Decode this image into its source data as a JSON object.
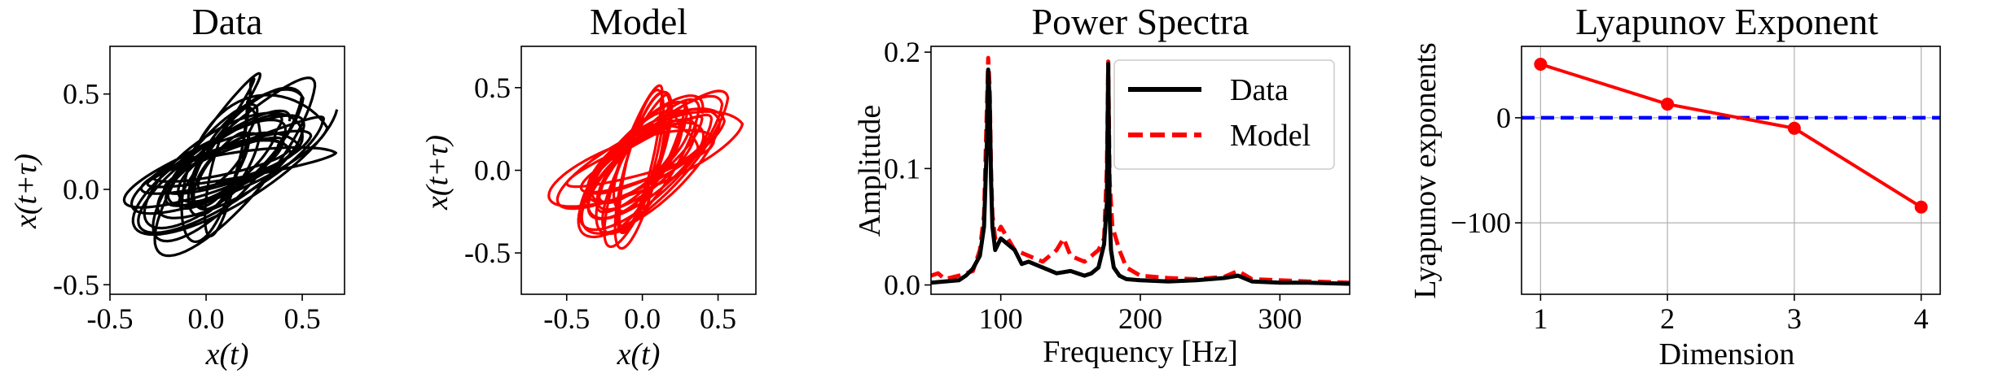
{
  "colors": {
    "data": "#000000",
    "model": "#ff0000",
    "zero_line": "#0000ff",
    "grid": "#b0b0b0"
  },
  "chart_data": [
    {
      "type": "line",
      "subtype": "phase-portrait",
      "title": "Data",
      "xlabel": "x(t)",
      "ylabel": "x(t+τ)",
      "xlim": [
        -0.5,
        0.72
      ],
      "ylim": [
        -0.55,
        0.75
      ],
      "xticks": [
        -0.5,
        0.0,
        0.5
      ],
      "yticks": [
        -0.5,
        0.0,
        0.5
      ],
      "xtick_labels": [
        "-0.5",
        "0.0",
        "0.5"
      ],
      "ytick_labels": [
        "-0.5",
        "0.0",
        "0.5"
      ],
      "series": [
        {
          "color": "#000000",
          "center": [
            0.1,
            0.12
          ],
          "amplitude_x": [
            0.08,
            0.58
          ],
          "amplitude_y": [
            0.06,
            0.55
          ],
          "turns": 22
        }
      ]
    },
    {
      "type": "line",
      "subtype": "phase-portrait",
      "title": "Model",
      "xlabel": "x(t)",
      "ylabel": "x(t+τ)",
      "xlim": [
        -0.8,
        0.75
      ],
      "ylim": [
        -0.75,
        0.75
      ],
      "xticks": [
        -0.5,
        0.0,
        0.5
      ],
      "yticks": [
        -0.5,
        0.0,
        0.5
      ],
      "xtick_labels": [
        "-0.5",
        "0.0",
        "0.5"
      ],
      "ytick_labels": [
        "-0.5",
        "0.0",
        "0.5"
      ],
      "series": [
        {
          "color": "#ff0000",
          "center": [
            0.0,
            0.05
          ],
          "amplitude_x": [
            0.12,
            0.66
          ],
          "amplitude_y": [
            0.1,
            0.64
          ],
          "turns": 22
        }
      ]
    },
    {
      "type": "line",
      "title": "Power Spectra",
      "xlabel": "Frequency [Hz]",
      "ylabel": "Amplitude",
      "xlim": [
        50,
        350
      ],
      "ylim": [
        -0.008,
        0.205
      ],
      "xticks": [
        100,
        200,
        300
      ],
      "yticks": [
        0.0,
        0.1,
        0.2
      ],
      "xtick_labels": [
        "100",
        "200",
        "300"
      ],
      "ytick_labels": [
        "0.0",
        "0.1",
        "0.2"
      ],
      "legend": {
        "position": "top-right",
        "entries": [
          "Data",
          "Model"
        ]
      },
      "series": [
        {
          "name": "Data",
          "color": "#000000",
          "style": "solid",
          "x": [
            50,
            60,
            70,
            75,
            80,
            85,
            88,
            90,
            91,
            92,
            93,
            94,
            96,
            100,
            105,
            110,
            115,
            120,
            130,
            140,
            150,
            160,
            165,
            170,
            174,
            176,
            177,
            178,
            179,
            181,
            185,
            190,
            200,
            220,
            240,
            260,
            270,
            280,
            300,
            320,
            350
          ],
          "y": [
            0.002,
            0.003,
            0.004,
            0.008,
            0.014,
            0.025,
            0.05,
            0.12,
            0.185,
            0.16,
            0.09,
            0.05,
            0.03,
            0.04,
            0.035,
            0.03,
            0.018,
            0.02,
            0.015,
            0.01,
            0.012,
            0.008,
            0.01,
            0.015,
            0.035,
            0.07,
            0.19,
            0.06,
            0.03,
            0.015,
            0.008,
            0.005,
            0.004,
            0.003,
            0.004,
            0.006,
            0.008,
            0.003,
            0.002,
            0.002,
            0.001
          ]
        },
        {
          "name": "Model",
          "color": "#ff0000",
          "style": "dashed",
          "x": [
            50,
            55,
            60,
            70,
            80,
            85,
            88,
            90,
            91,
            92,
            93,
            94,
            96,
            100,
            110,
            120,
            130,
            140,
            145,
            150,
            160,
            170,
            174,
            176,
            177,
            178,
            180,
            185,
            190,
            200,
            220,
            240,
            260,
            270,
            280,
            300,
            320,
            350
          ],
          "y": [
            0.008,
            0.01,
            0.005,
            0.008,
            0.012,
            0.03,
            0.06,
            0.15,
            0.195,
            0.17,
            0.1,
            0.06,
            0.04,
            0.05,
            0.03,
            0.025,
            0.02,
            0.03,
            0.04,
            0.025,
            0.02,
            0.03,
            0.04,
            0.1,
            0.192,
            0.09,
            0.05,
            0.03,
            0.015,
            0.008,
            0.006,
            0.005,
            0.007,
            0.012,
            0.005,
            0.004,
            0.003,
            0.002
          ]
        }
      ]
    },
    {
      "type": "line",
      "title": "Lyapunov Exponent",
      "xlabel": "Dimension",
      "ylabel": "Lyapunov exponents",
      "xlim": [
        0.85,
        4.15
      ],
      "ylim": [
        -168,
        68
      ],
      "xticks": [
        1,
        2,
        3,
        4
      ],
      "yticks": [
        -100,
        0
      ],
      "xtick_labels": [
        "1",
        "2",
        "3",
        "4"
      ],
      "ytick_labels": [
        "−100",
        "0"
      ],
      "grid": true,
      "hline": 0,
      "series": [
        {
          "color": "#ff0000",
          "x": [
            1,
            2,
            3,
            4
          ],
          "y": [
            51,
            13,
            -10,
            -85
          ]
        }
      ]
    }
  ]
}
